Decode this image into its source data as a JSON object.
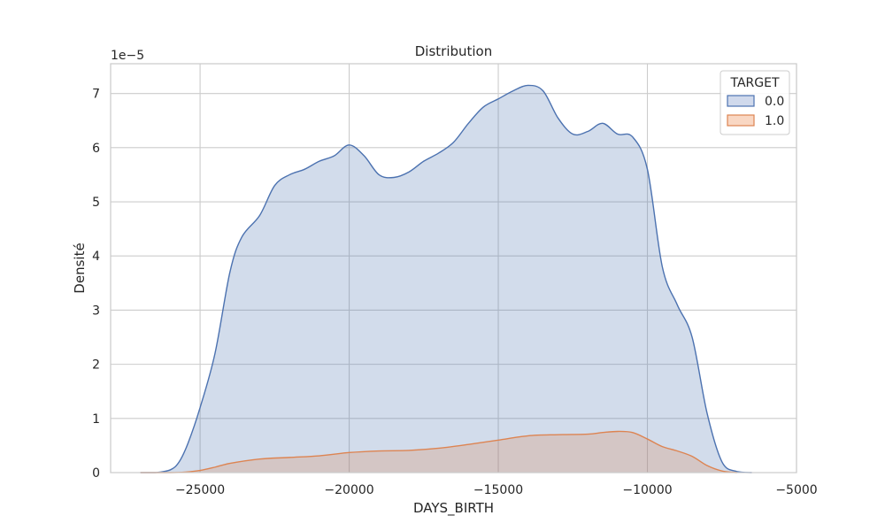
{
  "chart_data": {
    "type": "area",
    "title": "Distribution",
    "xlabel": "DAYS_BIRTH",
    "ylabel": "Densité",
    "y_scale_label": "1e−5",
    "xlim": [
      -28000,
      -5000
    ],
    "ylim": [
      0,
      7.55
    ],
    "x_ticks": [
      -25000,
      -20000,
      -15000,
      -10000,
      -5000
    ],
    "x_tick_labels": [
      "−25000",
      "−20000",
      "−15000",
      "−10000",
      "−5000"
    ],
    "y_ticks": [
      0,
      1,
      2,
      3,
      4,
      5,
      6,
      7
    ],
    "y_tick_labels": [
      "0",
      "1",
      "2",
      "3",
      "4",
      "5",
      "6",
      "7"
    ],
    "grid": true,
    "legend": {
      "title": "TARGET",
      "placement": "top-right"
    },
    "series": [
      {
        "name": "0.0",
        "color": "#4c72b0",
        "fill": "#d0d9ec",
        "points": [
          [
            -27000,
            0
          ],
          [
            -26500,
            0.0
          ],
          [
            -26000,
            0.05
          ],
          [
            -25700,
            0.2
          ],
          [
            -25400,
            0.55
          ],
          [
            -25000,
            1.2
          ],
          [
            -24500,
            2.2
          ],
          [
            -24000,
            3.7
          ],
          [
            -23600,
            4.35
          ],
          [
            -23000,
            4.75
          ],
          [
            -22500,
            5.3
          ],
          [
            -22000,
            5.5
          ],
          [
            -21500,
            5.6
          ],
          [
            -21000,
            5.75
          ],
          [
            -20500,
            5.85
          ],
          [
            -20000,
            6.05
          ],
          [
            -19500,
            5.85
          ],
          [
            -19000,
            5.5
          ],
          [
            -18500,
            5.45
          ],
          [
            -18000,
            5.55
          ],
          [
            -17500,
            5.75
          ],
          [
            -17000,
            5.9
          ],
          [
            -16500,
            6.1
          ],
          [
            -16000,
            6.45
          ],
          [
            -15500,
            6.75
          ],
          [
            -15000,
            6.9
          ],
          [
            -14500,
            7.05
          ],
          [
            -14000,
            7.15
          ],
          [
            -13500,
            7.05
          ],
          [
            -13000,
            6.55
          ],
          [
            -12500,
            6.25
          ],
          [
            -12000,
            6.3
          ],
          [
            -11500,
            6.45
          ],
          [
            -11000,
            6.25
          ],
          [
            -10500,
            6.2
          ],
          [
            -10000,
            5.6
          ],
          [
            -9500,
            3.8
          ],
          [
            -9000,
            3.1
          ],
          [
            -8500,
            2.5
          ],
          [
            -8000,
            1.1
          ],
          [
            -7500,
            0.2
          ],
          [
            -7000,
            0.02
          ],
          [
            -6500,
            0
          ]
        ]
      },
      {
        "name": "1.0",
        "color": "#dd8452",
        "fill": "#f9d7c3",
        "points": [
          [
            -27000,
            0
          ],
          [
            -26000,
            0
          ],
          [
            -25500,
            0.01
          ],
          [
            -25000,
            0.04
          ],
          [
            -24500,
            0.1
          ],
          [
            -24000,
            0.17
          ],
          [
            -23000,
            0.25
          ],
          [
            -22000,
            0.28
          ],
          [
            -21000,
            0.31
          ],
          [
            -20000,
            0.37
          ],
          [
            -19000,
            0.4
          ],
          [
            -18000,
            0.41
          ],
          [
            -17000,
            0.45
          ],
          [
            -16000,
            0.52
          ],
          [
            -15000,
            0.6
          ],
          [
            -14000,
            0.68
          ],
          [
            -13000,
            0.7
          ],
          [
            -12000,
            0.71
          ],
          [
            -11500,
            0.74
          ],
          [
            -11000,
            0.76
          ],
          [
            -10500,
            0.74
          ],
          [
            -10000,
            0.62
          ],
          [
            -9500,
            0.48
          ],
          [
            -9000,
            0.4
          ],
          [
            -8500,
            0.3
          ],
          [
            -8000,
            0.13
          ],
          [
            -7500,
            0.03
          ],
          [
            -7000,
            0
          ]
        ]
      }
    ]
  }
}
